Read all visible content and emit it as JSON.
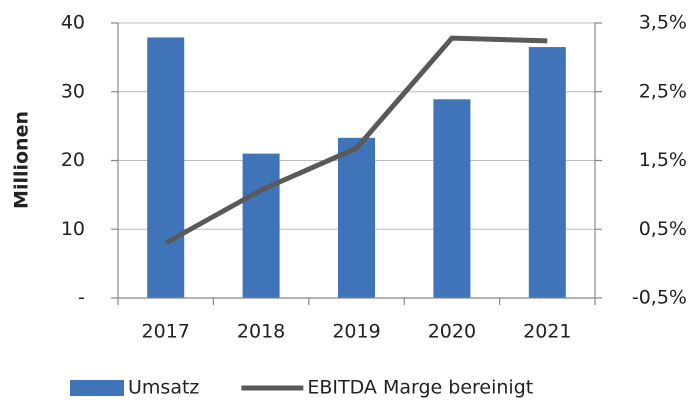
{
  "chart_data": {
    "type": "bar",
    "y_label": "Millionen",
    "categories": [
      "2017",
      "2018",
      "2019",
      "2020",
      "2021"
    ],
    "series": [
      {
        "name": "Umsatz",
        "type": "bar",
        "color": "#3f74b8",
        "values": [
          37.9,
          21,
          23.3,
          28.9,
          36.5
        ]
      },
      {
        "name": "EBITDA Marge bereinigt",
        "type": "line",
        "axis": "y2",
        "color": "#595959",
        "values": [
          0.3,
          1.07,
          1.68,
          3.28,
          3.24
        ]
      }
    ],
    "ylim": [
      0,
      40
    ],
    "yticks": [
      {
        "value": 0,
        "label": "-"
      },
      10,
      20,
      30,
      40
    ],
    "y2lim": [
      -0.5,
      3.5
    ],
    "y2ticks": [
      {
        "value": -0.5,
        "label": "-0,5%"
      },
      {
        "value": 0.5,
        "label": "0,5%"
      },
      {
        "value": 1.5,
        "label": "1,5%"
      },
      {
        "value": 2.5,
        "label": "2,5%"
      },
      {
        "value": 3.5,
        "label": "3,5%"
      }
    ],
    "grid": true,
    "legend": "bottom"
  }
}
